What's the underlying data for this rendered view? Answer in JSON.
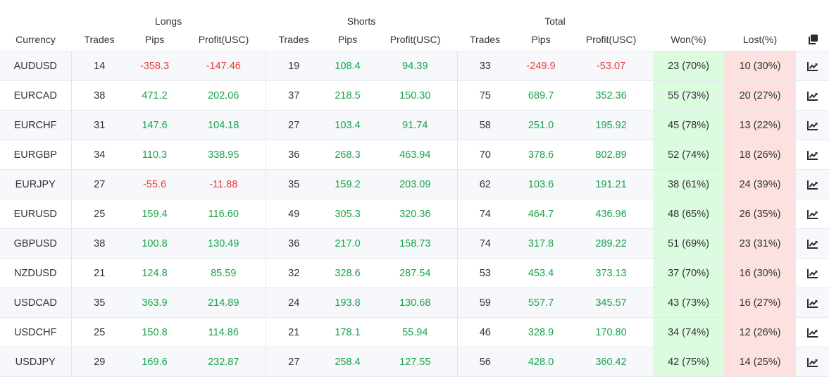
{
  "header": {
    "groups": {
      "longs": "Longs",
      "shorts": "Shorts",
      "total": "Total"
    },
    "columns": {
      "currency": "Currency",
      "longs_trades": "Trades",
      "longs_pips": "Pips",
      "longs_profit": "Profit(USC)",
      "shorts_trades": "Trades",
      "shorts_pips": "Pips",
      "shorts_profit": "Profit(USC)",
      "total_trades": "Trades",
      "total_pips": "Pips",
      "total_profit": "Profit(USC)",
      "won": "Won(%)",
      "lost": "Lost(%)"
    },
    "copy_icon": "copy-icon"
  },
  "colors": {
    "positive": "#19a44a",
    "negative": "#e8403f",
    "won_bg": "#dcfce0",
    "lost_bg": "#fde1e1"
  },
  "row_icon": "chart-line-icon",
  "rows": [
    {
      "currency": "AUDUSD",
      "l_trades": "14",
      "l_pips": "-358.3",
      "l_profit": "-147.46",
      "s_trades": "19",
      "s_pips": "108.4",
      "s_profit": "94.39",
      "t_trades": "33",
      "t_pips": "-249.9",
      "t_profit": "-53.07",
      "won": "23 (70%)",
      "lost": "10 (30%)"
    },
    {
      "currency": "EURCAD",
      "l_trades": "38",
      "l_pips": "471.2",
      "l_profit": "202.06",
      "s_trades": "37",
      "s_pips": "218.5",
      "s_profit": "150.30",
      "t_trades": "75",
      "t_pips": "689.7",
      "t_profit": "352.36",
      "won": "55 (73%)",
      "lost": "20 (27%)"
    },
    {
      "currency": "EURCHF",
      "l_trades": "31",
      "l_pips": "147.6",
      "l_profit": "104.18",
      "s_trades": "27",
      "s_pips": "103.4",
      "s_profit": "91.74",
      "t_trades": "58",
      "t_pips": "251.0",
      "t_profit": "195.92",
      "won": "45 (78%)",
      "lost": "13 (22%)"
    },
    {
      "currency": "EURGBP",
      "l_trades": "34",
      "l_pips": "110.3",
      "l_profit": "338.95",
      "s_trades": "36",
      "s_pips": "268.3",
      "s_profit": "463.94",
      "t_trades": "70",
      "t_pips": "378.6",
      "t_profit": "802.89",
      "won": "52 (74%)",
      "lost": "18 (26%)"
    },
    {
      "currency": "EURJPY",
      "l_trades": "27",
      "l_pips": "-55.6",
      "l_profit": "-11.88",
      "s_trades": "35",
      "s_pips": "159.2",
      "s_profit": "203.09",
      "t_trades": "62",
      "t_pips": "103.6",
      "t_profit": "191.21",
      "won": "38 (61%)",
      "lost": "24 (39%)"
    },
    {
      "currency": "EURUSD",
      "l_trades": "25",
      "l_pips": "159.4",
      "l_profit": "116.60",
      "s_trades": "49",
      "s_pips": "305.3",
      "s_profit": "320.36",
      "t_trades": "74",
      "t_pips": "464.7",
      "t_profit": "436.96",
      "won": "48 (65%)",
      "lost": "26 (35%)"
    },
    {
      "currency": "GBPUSD",
      "l_trades": "38",
      "l_pips": "100.8",
      "l_profit": "130.49",
      "s_trades": "36",
      "s_pips": "217.0",
      "s_profit": "158.73",
      "t_trades": "74",
      "t_pips": "317.8",
      "t_profit": "289.22",
      "won": "51 (69%)",
      "lost": "23 (31%)"
    },
    {
      "currency": "NZDUSD",
      "l_trades": "21",
      "l_pips": "124.8",
      "l_profit": "85.59",
      "s_trades": "32",
      "s_pips": "328.6",
      "s_profit": "287.54",
      "t_trades": "53",
      "t_pips": "453.4",
      "t_profit": "373.13",
      "won": "37 (70%)",
      "lost": "16 (30%)"
    },
    {
      "currency": "USDCAD",
      "l_trades": "35",
      "l_pips": "363.9",
      "l_profit": "214.89",
      "s_trades": "24",
      "s_pips": "193.8",
      "s_profit": "130.68",
      "t_trades": "59",
      "t_pips": "557.7",
      "t_profit": "345.57",
      "won": "43 (73%)",
      "lost": "16 (27%)"
    },
    {
      "currency": "USDCHF",
      "l_trades": "25",
      "l_pips": "150.8",
      "l_profit": "114.86",
      "s_trades": "21",
      "s_pips": "178.1",
      "s_profit": "55.94",
      "t_trades": "46",
      "t_pips": "328.9",
      "t_profit": "170.80",
      "won": "34 (74%)",
      "lost": "12 (26%)"
    },
    {
      "currency": "USDJPY",
      "l_trades": "29",
      "l_pips": "169.6",
      "l_profit": "232.87",
      "s_trades": "27",
      "s_pips": "258.4",
      "s_profit": "127.55",
      "t_trades": "56",
      "t_pips": "428.0",
      "t_profit": "360.42",
      "won": "42 (75%)",
      "lost": "14 (25%)"
    }
  ]
}
